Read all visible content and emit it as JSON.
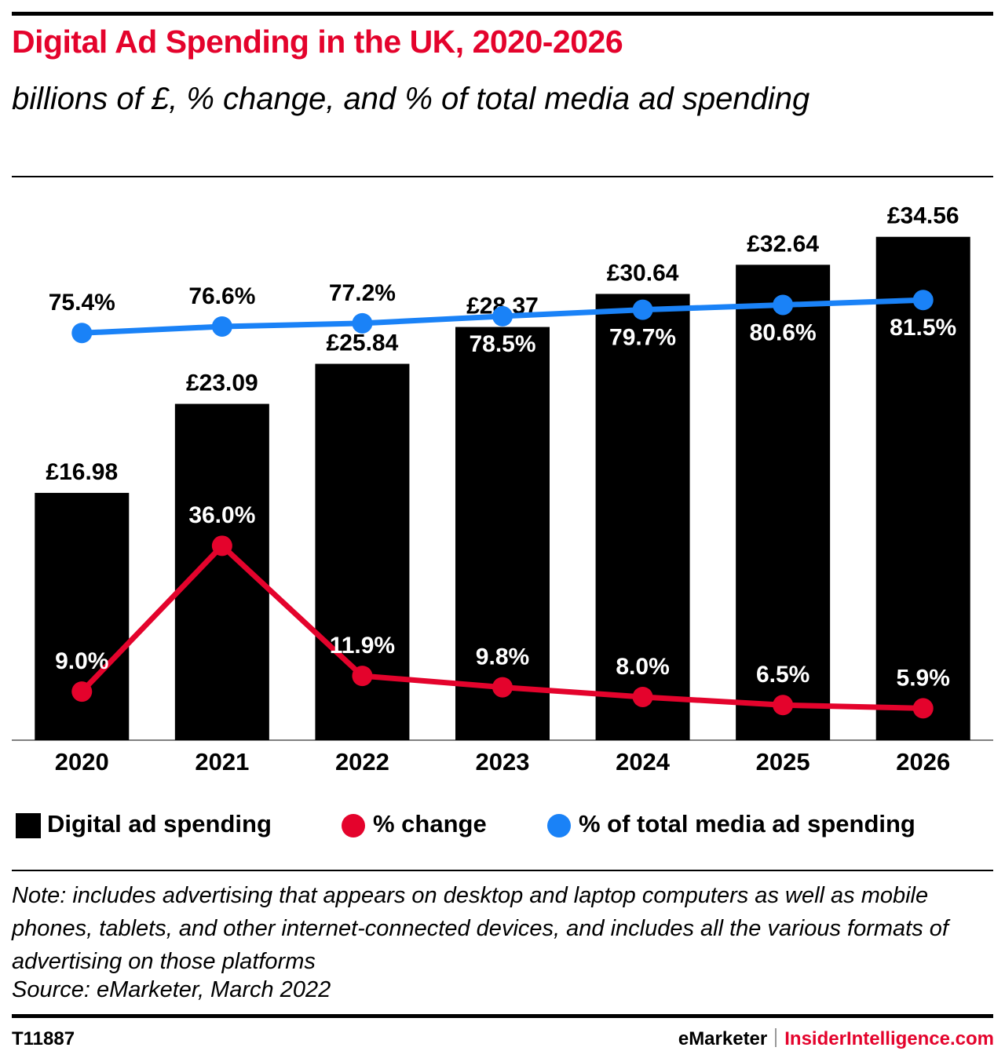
{
  "chart_data": {
    "type": "bar",
    "title": "Digital Ad Spending in the UK, 2020-2026",
    "subtitle": "billions of £, % change, and % of total media ad spending",
    "categories": [
      "2020",
      "2021",
      "2022",
      "2023",
      "2024",
      "2025",
      "2026"
    ],
    "ylim": [
      0,
      36
    ],
    "y2lim": [
      0,
      100
    ],
    "series": [
      {
        "name": "Digital ad spending",
        "type": "bar",
        "color": "#000000",
        "values": [
          16.98,
          23.09,
          25.84,
          28.37,
          30.64,
          32.64,
          34.56
        ],
        "value_labels": [
          "£16.98",
          "£23.09",
          "£25.84",
          "£28.37",
          "£30.64",
          "£32.64",
          "£34.56"
        ]
      },
      {
        "name": "% change",
        "type": "line",
        "axis": "y2",
        "color": "#e4032c",
        "values": [
          9.0,
          36.0,
          11.9,
          9.8,
          8.0,
          6.5,
          5.9
        ],
        "value_labels": [
          "9.0%",
          "36.0%",
          "11.9%",
          "9.8%",
          "8.0%",
          "6.5%",
          "5.9%"
        ]
      },
      {
        "name": "% of total media ad spending",
        "type": "line",
        "axis": "y2",
        "color": "#1a82f7",
        "values": [
          75.4,
          76.6,
          77.2,
          78.5,
          79.7,
          80.6,
          81.5
        ],
        "value_labels": [
          "75.4%",
          "76.6%",
          "77.2%",
          "78.5%",
          "79.7%",
          "80.6%",
          "81.5%"
        ]
      }
    ],
    "legend": "bottom",
    "note": "Note: includes advertising that appears on desktop and laptop computers as well as mobile phones, tablets, and other internet-connected devices, and includes all the various formats of advertising on those platforms",
    "source": "Source: eMarketer, March 2022"
  },
  "footer": {
    "id": "T11887",
    "brand": "eMarketer",
    "site": "InsiderIntelligence.com"
  }
}
